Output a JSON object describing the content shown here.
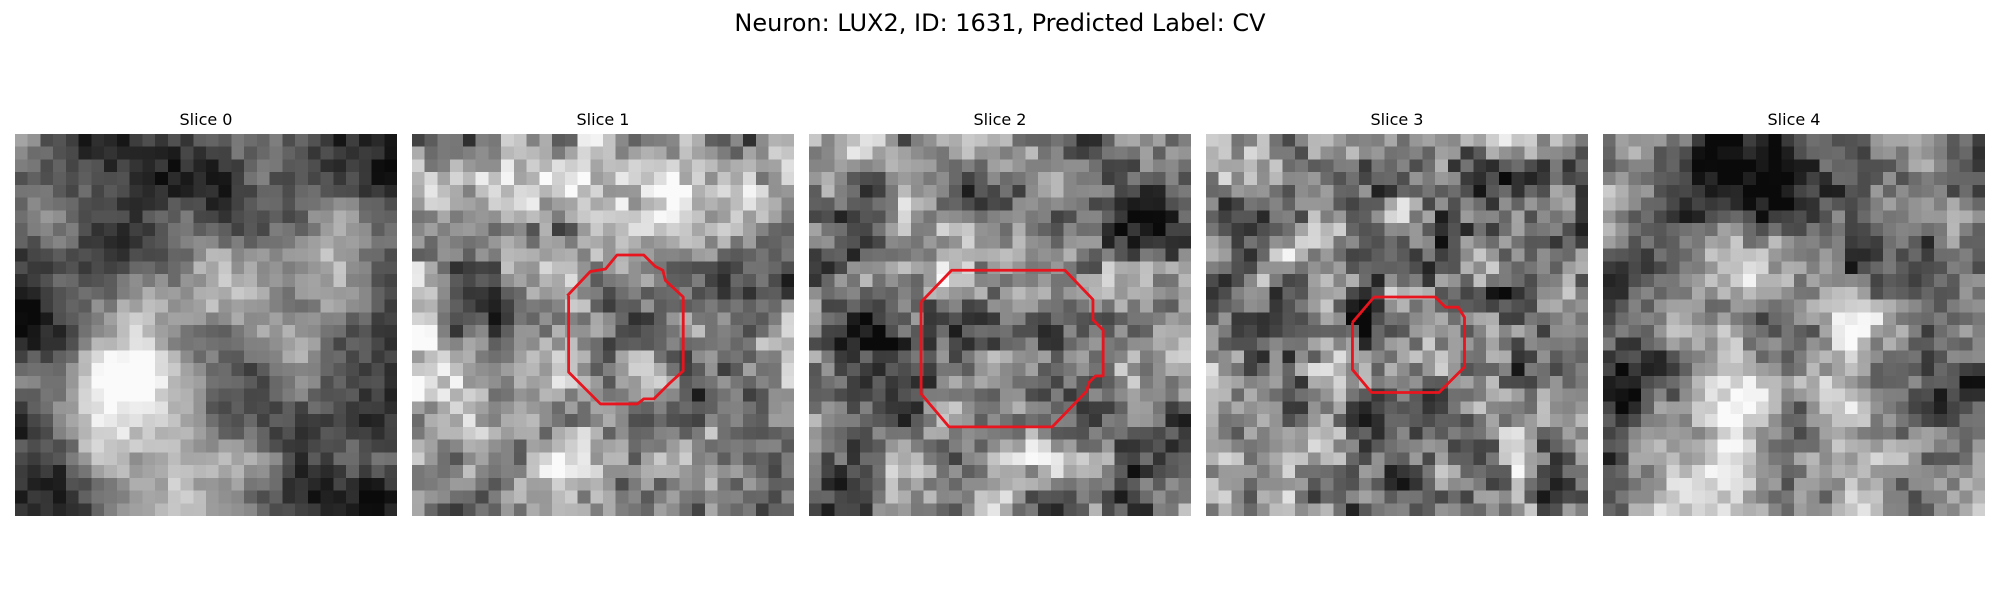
{
  "figure": {
    "title": "Neuron: LUX2, ID: 1631, Predicted Label: CV"
  },
  "colors": {
    "background": "#ffffff",
    "contour": "#e8141e",
    "colormap": "gray"
  },
  "panels": [
    {
      "title": "Slice 0",
      "has_contour": false,
      "seed": 1101,
      "smoothing": 2.6,
      "noise": 0.1,
      "base": 0.4,
      "blobs": [
        {
          "cx": 6,
          "cy": 20,
          "r": 4,
          "a": 0.45
        },
        {
          "cx": 14,
          "cy": 12,
          "r": 4,
          "a": 0.25
        },
        {
          "cx": 12,
          "cy": 2,
          "r": 3,
          "a": -0.25
        },
        {
          "cx": 2,
          "cy": 10,
          "r": 4,
          "a": -0.28
        },
        {
          "cx": 4,
          "cy": 27,
          "r": 3,
          "a": -0.25
        },
        {
          "cx": 17,
          "cy": 26,
          "r": 3,
          "a": 0.25
        },
        {
          "cx": 18,
          "cy": 5,
          "r": 3,
          "a": -0.2
        }
      ]
    },
    {
      "title": "Slice 1",
      "has_contour": true,
      "seed": 2202,
      "smoothing": 1.2,
      "noise": 0.16,
      "base": 0.62,
      "blobs": [
        {
          "cx": 6,
          "cy": 13,
          "r": 3,
          "a": -0.15
        },
        {
          "cx": 21,
          "cy": 13,
          "r": 3,
          "a": -0.15
        },
        {
          "cx": 27,
          "cy": 13,
          "r": 2,
          "a": -0.3
        },
        {
          "cx": 13,
          "cy": 15,
          "r": 3,
          "a": 0.05
        }
      ],
      "contour_pixels": [
        [
          12.2,
          12.7
        ],
        [
          14.0,
          10.8
        ],
        [
          15.2,
          10.6
        ],
        [
          16.1,
          9.5
        ],
        [
          18.2,
          9.5
        ],
        [
          19.1,
          10.4
        ],
        [
          19.7,
          10.7
        ],
        [
          19.9,
          11.5
        ],
        [
          21.3,
          12.8
        ],
        [
          21.3,
          18.6
        ],
        [
          20.2,
          19.6
        ],
        [
          19.0,
          20.8
        ],
        [
          18.2,
          20.8
        ],
        [
          17.7,
          21.2
        ],
        [
          14.8,
          21.2
        ],
        [
          12.3,
          18.7
        ],
        [
          12.3,
          12.7
        ]
      ]
    },
    {
      "title": "Slice 2",
      "has_contour": true,
      "seed": 3303,
      "smoothing": 1.2,
      "noise": 0.16,
      "base": 0.55,
      "blobs": [
        {
          "cx": 2,
          "cy": 15,
          "r": 3,
          "a": -0.35
        },
        {
          "cx": 26,
          "cy": 4,
          "r": 3,
          "a": -0.3
        },
        {
          "cx": 26,
          "cy": 24,
          "r": 3,
          "a": -0.3
        },
        {
          "cx": 13,
          "cy": 27,
          "r": 3,
          "a": 0.12
        },
        {
          "cx": 15,
          "cy": 15,
          "r": 4,
          "a": 0.05
        }
      ],
      "contour_pixels": [
        [
          8.8,
          13.2
        ],
        [
          11.2,
          10.7
        ],
        [
          20.1,
          10.7
        ],
        [
          22.3,
          13.0
        ],
        [
          22.3,
          14.6
        ],
        [
          23.1,
          15.4
        ],
        [
          23.1,
          19.0
        ],
        [
          22.5,
          19.0
        ],
        [
          22.0,
          19.5
        ],
        [
          21.8,
          20.2
        ],
        [
          19.1,
          23.0
        ],
        [
          11.0,
          23.0
        ],
        [
          8.8,
          20.4
        ],
        [
          8.8,
          13.2
        ]
      ]
    },
    {
      "title": "Slice 3",
      "has_contour": true,
      "seed": 4404,
      "smoothing": 1.0,
      "noise": 0.18,
      "base": 0.52,
      "blobs": [
        {
          "cx": 14,
          "cy": 21,
          "r": 4,
          "a": -0.15
        },
        {
          "cx": 25,
          "cy": 7,
          "r": 3,
          "a": -0.18
        },
        {
          "cx": 2,
          "cy": 13,
          "r": 2,
          "a": -0.15
        },
        {
          "cx": 15,
          "cy": 15,
          "r": 3,
          "a": 0.05
        }
      ],
      "contour_pixels": [
        [
          11.5,
          14.8
        ],
        [
          13.2,
          12.8
        ],
        [
          18.0,
          12.8
        ],
        [
          18.8,
          13.6
        ],
        [
          19.8,
          13.6
        ],
        [
          20.3,
          14.4
        ],
        [
          20.3,
          18.3
        ],
        [
          18.3,
          20.3
        ],
        [
          13.0,
          20.3
        ],
        [
          11.5,
          18.5
        ],
        [
          11.5,
          14.8
        ]
      ]
    },
    {
      "title": "Slice 4",
      "has_contour": false,
      "seed": 5505,
      "smoothing": 1.6,
      "noise": 0.13,
      "base": 0.55,
      "blobs": [
        {
          "cx": 12,
          "cy": 3,
          "r": 4,
          "a": -0.35
        },
        {
          "cx": 6,
          "cy": 4,
          "r": 3,
          "a": -0.3
        },
        {
          "cx": 22,
          "cy": 4,
          "r": 3,
          "a": -0.25
        },
        {
          "cx": 2,
          "cy": 18,
          "r": 3,
          "a": -0.3
        },
        {
          "cx": 25,
          "cy": 21,
          "r": 3,
          "a": -0.3
        },
        {
          "cx": 10,
          "cy": 21,
          "r": 4,
          "a": 0.18
        },
        {
          "cx": 18,
          "cy": 18,
          "r": 3,
          "a": 0.15
        }
      ]
    }
  ]
}
